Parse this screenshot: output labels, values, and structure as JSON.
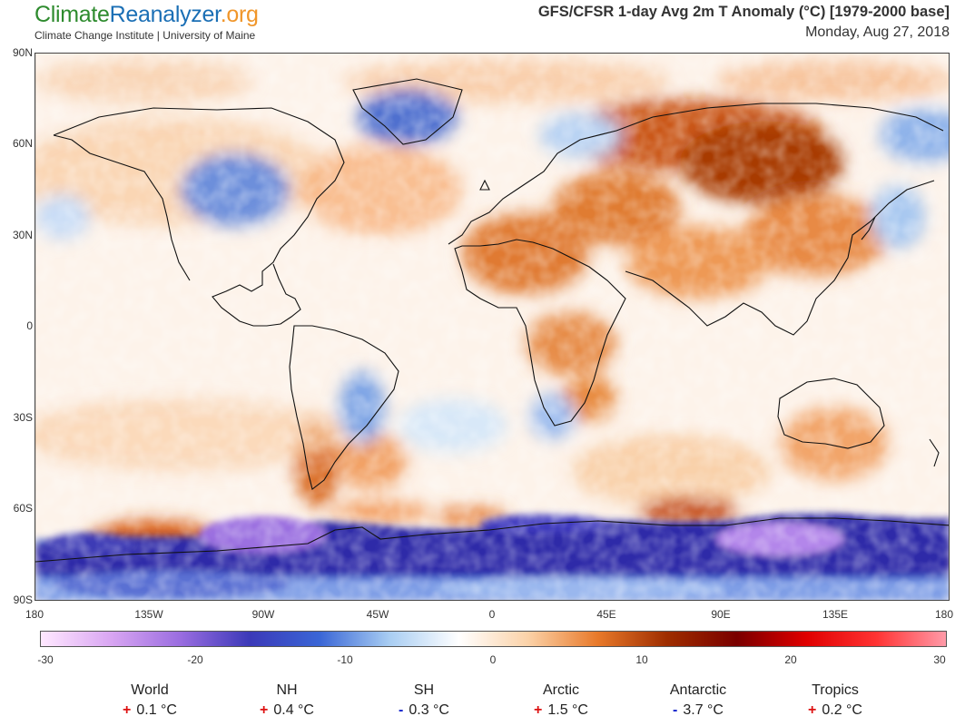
{
  "header": {
    "logo": {
      "part1": "Climate",
      "part2": "Reanalyzer",
      "part3": ".org"
    },
    "subtitle": "Climate Change Institute | University of Maine",
    "title": "GFS/CFSR 1-day Avg 2m T Anomaly (°C) [1979-2000 base]",
    "date": "Monday, Aug 27, 2018"
  },
  "map": {
    "lat_labels": [
      "90N",
      "60N",
      "30N",
      "0",
      "30S",
      "60S",
      "90S"
    ],
    "lon_labels": [
      "180",
      "135W",
      "90W",
      "45W",
      "0",
      "45E",
      "90E",
      "135E",
      "180"
    ]
  },
  "colorbar": {
    "labels": [
      "-30",
      "-20",
      "-10",
      "0",
      "10",
      "20",
      "30"
    ],
    "colors": [
      "#ffe8ff",
      "#d9a6f2",
      "#9a6de0",
      "#3b39b8",
      "#3a66d6",
      "#a8cdf2",
      "#ffffff",
      "#fbd2a8",
      "#e8792a",
      "#9e2d00",
      "#7a0000",
      "#e00000",
      "#ff3333",
      "#ff9aa8"
    ]
  },
  "stats": [
    {
      "name": "World",
      "sign": "+",
      "value": "0.1 °C"
    },
    {
      "name": "NH",
      "sign": "+",
      "value": "0.4 °C"
    },
    {
      "name": "SH",
      "sign": "-",
      "value": "0.3 °C"
    },
    {
      "name": "Arctic",
      "sign": "+",
      "value": "1.5 °C"
    },
    {
      "name": "Antarctic",
      "sign": "-",
      "value": "3.7 °C"
    },
    {
      "name": "Tropics",
      "sign": "+",
      "value": "0.2 °C"
    }
  ],
  "colors": {
    "sign_positive": "#dd1111",
    "sign_negative": "#1122cc"
  }
}
